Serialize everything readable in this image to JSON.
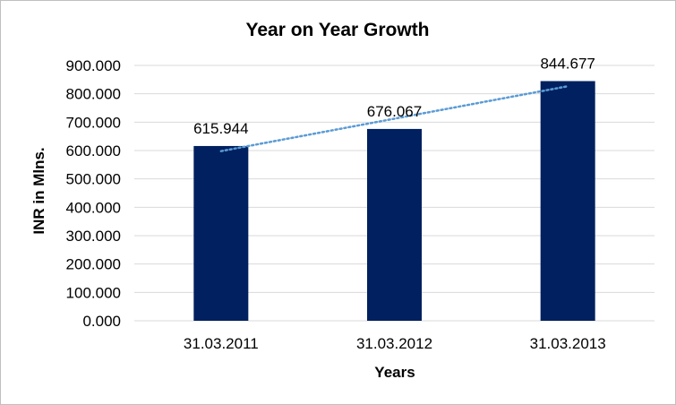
{
  "chart_data": {
    "type": "bar",
    "title": "Year on Year Growth",
    "xlabel": "Years",
    "ylabel": "INR in Mlns.",
    "categories": [
      "31.03.2011",
      "31.03.2012",
      "31.03.2013"
    ],
    "values": [
      615.944,
      676.067,
      844.677
    ],
    "data_labels": [
      "615.944",
      "676.067",
      "844.677"
    ],
    "ylim": [
      0,
      900
    ],
    "y_ticks": [
      0,
      100,
      200,
      300,
      400,
      500,
      600,
      700,
      800,
      900
    ],
    "y_tick_labels": [
      "0.000",
      "100.000",
      "200.000",
      "300.000",
      "400.000",
      "500.000",
      "600.000",
      "700.000",
      "800.000",
      "900.000"
    ],
    "grid": true,
    "legend": "none",
    "trendline": "linear, dotted",
    "bar_color": "#002060",
    "trendline_color": "#5b9bd5",
    "grid_color": "#d9d9d9"
  }
}
